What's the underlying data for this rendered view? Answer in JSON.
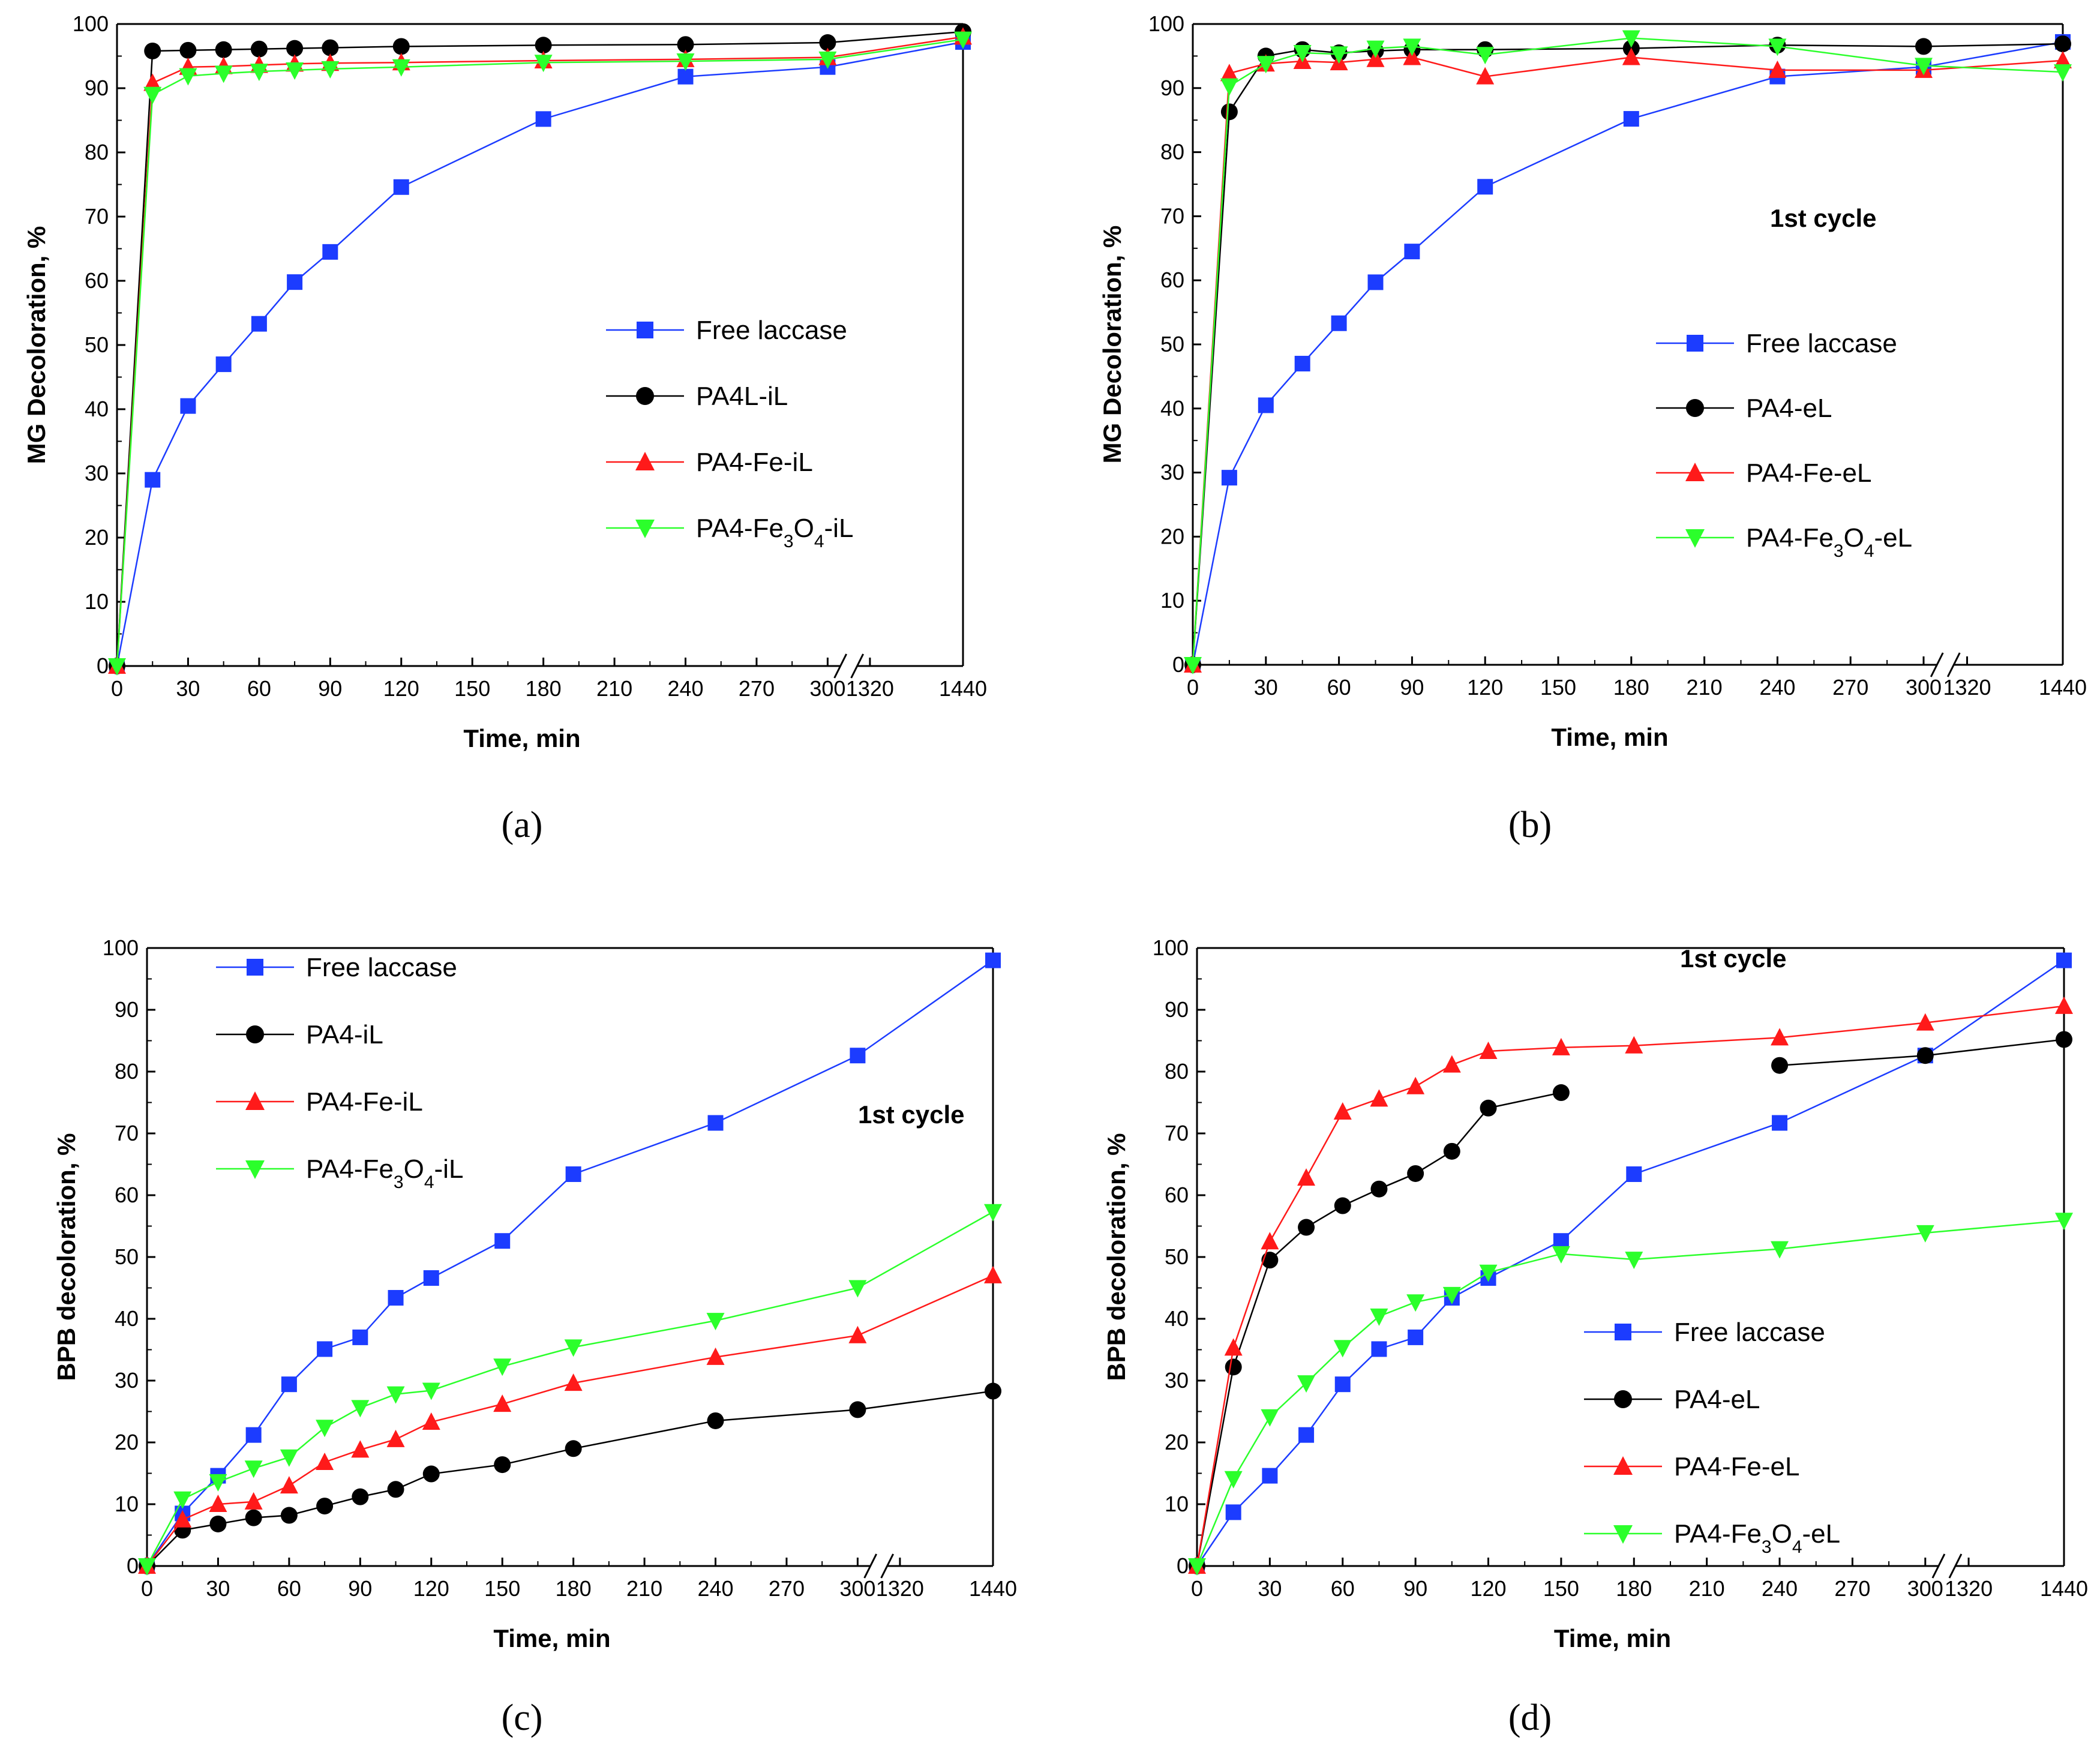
{
  "colors": {
    "free": "#1c3cff",
    "black": "#000000",
    "red": "#ff1a1a",
    "green": "#2bff2b"
  },
  "chart_data": [
    {
      "id": "a",
      "panel_label": "(a)",
      "type": "line",
      "xlabel": "Time, min",
      "ylabel": "MG Decoloration, %",
      "ylim": [
        0,
        100
      ],
      "yticks": [
        "0",
        "10",
        "20",
        "30",
        "40",
        "50",
        "60",
        "70",
        "80",
        "90",
        "100"
      ],
      "xticks": [
        "0",
        "30",
        "60",
        "90",
        "120",
        "150",
        "180",
        "210",
        "240",
        "270",
        "300",
        "1320",
        "1440"
      ],
      "axis_break": "between 300 and 1320",
      "annotation": "",
      "legend_position": "center-right",
      "series": [
        {
          "name": "Free laccase",
          "color": "#1c3cff",
          "marker": "square",
          "x": [
            0,
            15,
            30,
            45,
            60,
            75,
            90,
            120,
            180,
            240,
            300,
            1440
          ],
          "y": [
            0,
            29,
            40.5,
            47,
            53.3,
            59.8,
            64.5,
            74.6,
            85.2,
            91.8,
            93.3,
            97.2
          ]
        },
        {
          "name": "PA4L-iL",
          "color": "#000000",
          "marker": "circle",
          "x": [
            0,
            15,
            30,
            45,
            60,
            75,
            90,
            120,
            180,
            240,
            300,
            1440
          ],
          "y": [
            0,
            95.8,
            95.9,
            96,
            96.1,
            96.2,
            96.3,
            96.5,
            96.7,
            96.8,
            97.1,
            98.8
          ]
        },
        {
          "name": "PA4-Fe-iL",
          "color": "#ff1a1a",
          "marker": "triangle-up",
          "x": [
            0,
            15,
            30,
            45,
            60,
            75,
            90,
            120,
            180,
            240,
            300,
            1440
          ],
          "y": [
            0,
            90.8,
            93.3,
            93.4,
            93.6,
            93.8,
            93.9,
            94,
            94.3,
            94.5,
            94.8,
            98
          ]
        },
        {
          "name": "PA4-Fe3O4-iL",
          "color": "#2bff2b",
          "marker": "triangle-down",
          "x": [
            0,
            15,
            30,
            45,
            60,
            75,
            90,
            120,
            180,
            240,
            300,
            1440
          ],
          "y": [
            0,
            89,
            91.9,
            92.3,
            92.6,
            92.8,
            93,
            93.3,
            94,
            94.2,
            94.5,
            97.6
          ]
        }
      ]
    },
    {
      "id": "b",
      "panel_label": "(b)",
      "type": "line",
      "xlabel": "Time, min",
      "ylabel": "MG Decoloration, %",
      "ylim": [
        0,
        100
      ],
      "yticks": [
        "0",
        "10",
        "20",
        "30",
        "40",
        "50",
        "60",
        "70",
        "80",
        "90",
        "100"
      ],
      "xticks": [
        "0",
        "30",
        "60",
        "90",
        "120",
        "150",
        "180",
        "210",
        "240",
        "270",
        "300",
        "1320",
        "1440"
      ],
      "axis_break": "between 300 and 1320",
      "annotation": "1st cycle",
      "legend_position": "center-right",
      "series": [
        {
          "name": "Free laccase",
          "color": "#1c3cff",
          "marker": "square",
          "x": [
            0,
            15,
            30,
            45,
            60,
            75,
            90,
            120,
            180,
            240,
            300,
            1440
          ],
          "y": [
            0,
            29.2,
            40.5,
            47,
            53.3,
            59.7,
            64.5,
            74.6,
            85.2,
            91.8,
            93.3,
            97.2
          ]
        },
        {
          "name": "PA4-eL",
          "color": "#000000",
          "marker": "circle",
          "x": [
            0,
            15,
            30,
            45,
            60,
            75,
            90,
            120,
            180,
            240,
            300,
            1440
          ],
          "y": [
            0,
            86.3,
            95,
            96,
            95.5,
            95.8,
            96,
            96,
            96.2,
            96.7,
            96.5,
            96.9
          ]
        },
        {
          "name": "PA4-Fe-eL",
          "color": "#ff1a1a",
          "marker": "triangle-up",
          "x": [
            0,
            15,
            30,
            45,
            60,
            75,
            90,
            120,
            180,
            240,
            300,
            1440
          ],
          "y": [
            0,
            92.3,
            93.8,
            94.2,
            94,
            94.5,
            94.8,
            91.8,
            94.8,
            92.8,
            92.8,
            94.3
          ]
        },
        {
          "name": "PA4-Fe3O4-eL",
          "color": "#2bff2b",
          "marker": "triangle-down",
          "x": [
            0,
            15,
            30,
            45,
            60,
            75,
            90,
            120,
            180,
            240,
            300,
            1440
          ],
          "y": [
            0,
            90.3,
            93.8,
            95.5,
            95.3,
            96.2,
            96.5,
            95.2,
            97.8,
            96.5,
            93.5,
            92.5
          ]
        }
      ]
    },
    {
      "id": "c",
      "panel_label": "(c)",
      "type": "line",
      "xlabel": "Time, min",
      "ylabel": "BPB decoloration, %",
      "ylim": [
        0,
        100
      ],
      "yticks": [
        "0",
        "10",
        "20",
        "30",
        "40",
        "50",
        "60",
        "70",
        "80",
        "90",
        "100"
      ],
      "xticks": [
        "0",
        "30",
        "60",
        "90",
        "120",
        "150",
        "180",
        "210",
        "240",
        "270",
        "300",
        "1320",
        "1440"
      ],
      "axis_break": "between 300 and 1320",
      "annotation": "1st cycle",
      "legend_position": "top-left",
      "series": [
        {
          "name": "Free laccase",
          "color": "#1c3cff",
          "marker": "square",
          "x": [
            0,
            15,
            30,
            45,
            60,
            75,
            90,
            105,
            120,
            150,
            180,
            240,
            300,
            1440
          ],
          "y": [
            0,
            8.5,
            14.6,
            21.2,
            29.4,
            35.1,
            37,
            43.4,
            46.6,
            52.6,
            63.4,
            71.7,
            82.6,
            98
          ]
        },
        {
          "name": "PA4-iL",
          "color": "#000000",
          "marker": "circle",
          "x": [
            0,
            15,
            30,
            45,
            60,
            75,
            90,
            105,
            120,
            150,
            180,
            240,
            300,
            1440
          ],
          "y": [
            0,
            5.8,
            6.8,
            7.8,
            8.2,
            9.7,
            11.2,
            12.4,
            14.9,
            16.4,
            19,
            23.5,
            25.3,
            28.3
          ]
        },
        {
          "name": "PA4-Fe-iL",
          "color": "#ff1a1a",
          "marker": "triangle-up",
          "x": [
            0,
            15,
            30,
            45,
            60,
            75,
            90,
            105,
            120,
            150,
            180,
            240,
            300,
            1440
          ],
          "y": [
            0,
            7.5,
            10,
            10.4,
            13,
            16.8,
            18.8,
            20.5,
            23.3,
            26.2,
            29.6,
            33.8,
            37.3,
            47
          ]
        },
        {
          "name": "PA4-Fe3O4-iL",
          "color": "#2bff2b",
          "marker": "triangle-down",
          "x": [
            0,
            15,
            30,
            45,
            60,
            75,
            90,
            105,
            120,
            150,
            180,
            240,
            300,
            1440
          ],
          "y": [
            0,
            10.8,
            13.6,
            15.8,
            17.6,
            22.4,
            25.6,
            27.8,
            28.4,
            32.3,
            35.4,
            39.7,
            45,
            57.3
          ]
        }
      ]
    },
    {
      "id": "d",
      "panel_label": "(d)",
      "type": "line",
      "xlabel": "Time, min",
      "ylabel": "BPB decoloration, %",
      "ylim": [
        0,
        100
      ],
      "yticks": [
        "0",
        "10",
        "20",
        "30",
        "40",
        "50",
        "60",
        "70",
        "80",
        "90",
        "100"
      ],
      "xticks": [
        "0",
        "30",
        "60",
        "90",
        "120",
        "150",
        "180",
        "210",
        "240",
        "270",
        "300",
        "1320",
        "1440"
      ],
      "axis_break": "between 300 and 1320",
      "annotation": "1st cycle",
      "legend_position": "bottom-right",
      "series": [
        {
          "name": "Free laccase",
          "color": "#1c3cff",
          "marker": "square",
          "x": [
            0,
            15,
            30,
            45,
            60,
            75,
            90,
            105,
            120,
            150,
            180,
            240,
            300,
            1440
          ],
          "y": [
            0,
            8.7,
            14.6,
            21.2,
            29.4,
            35.1,
            37,
            43.4,
            46.6,
            52.6,
            63.4,
            71.7,
            82.6,
            98
          ]
        },
        {
          "name": "PA4-eL",
          "color": "#000000",
          "marker": "circle",
          "x": [
            0,
            15,
            30,
            45,
            60,
            75,
            90,
            105,
            120,
            150,
            240,
            300,
            1440
          ],
          "y": [
            0,
            32.2,
            49.5,
            54.8,
            58.3,
            61,
            63.5,
            67.1,
            74.1,
            76.6,
            81,
            82.6,
            85.2
          ]
        },
        {
          "name": "PA4-Fe-eL",
          "color": "#ff1a1a",
          "marker": "triangle-up",
          "x": [
            0,
            15,
            30,
            45,
            60,
            75,
            90,
            105,
            120,
            150,
            180,
            240,
            300,
            1440
          ],
          "y": [
            0,
            35.3,
            52.5,
            62.8,
            73.5,
            75.6,
            77.6,
            81.1,
            83.3,
            83.9,
            84.2,
            85.5,
            87.9,
            90.6
          ]
        },
        {
          "name": "PA4-Fe3O4-eL",
          "color": "#2bff2b",
          "marker": "triangle-down",
          "x": [
            0,
            15,
            30,
            45,
            60,
            75,
            90,
            105,
            120,
            150,
            180,
            240,
            300,
            1440
          ],
          "y": [
            0,
            14.1,
            24.1,
            29.6,
            35.3,
            40.4,
            42.7,
            43.9,
            47.5,
            50.5,
            49.6,
            51.3,
            53.9,
            55.9
          ]
        }
      ]
    }
  ]
}
